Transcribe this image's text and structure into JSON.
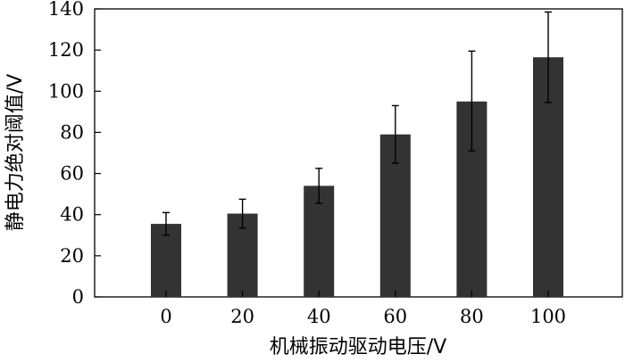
{
  "chart_data": {
    "type": "bar",
    "xlabel": "机械振动驱动电压/V",
    "ylabel": "静电力绝对阈值/V",
    "categories": [
      "0",
      "20",
      "40",
      "60",
      "80",
      "100"
    ],
    "values": [
      35.5,
      40.5,
      54,
      79,
      95,
      116.5
    ],
    "errors": [
      [
        30,
        41
      ],
      [
        33.5,
        47.5
      ],
      [
        45.5,
        62.5
      ],
      [
        65,
        93
      ],
      [
        71,
        119.5
      ],
      [
        94.5,
        138.5
      ]
    ],
    "yticks": [
      0,
      20,
      40,
      60,
      80,
      100,
      120,
      140
    ],
    "ylim": [
      0,
      140
    ],
    "grid": false,
    "bar_color": "#333333"
  }
}
